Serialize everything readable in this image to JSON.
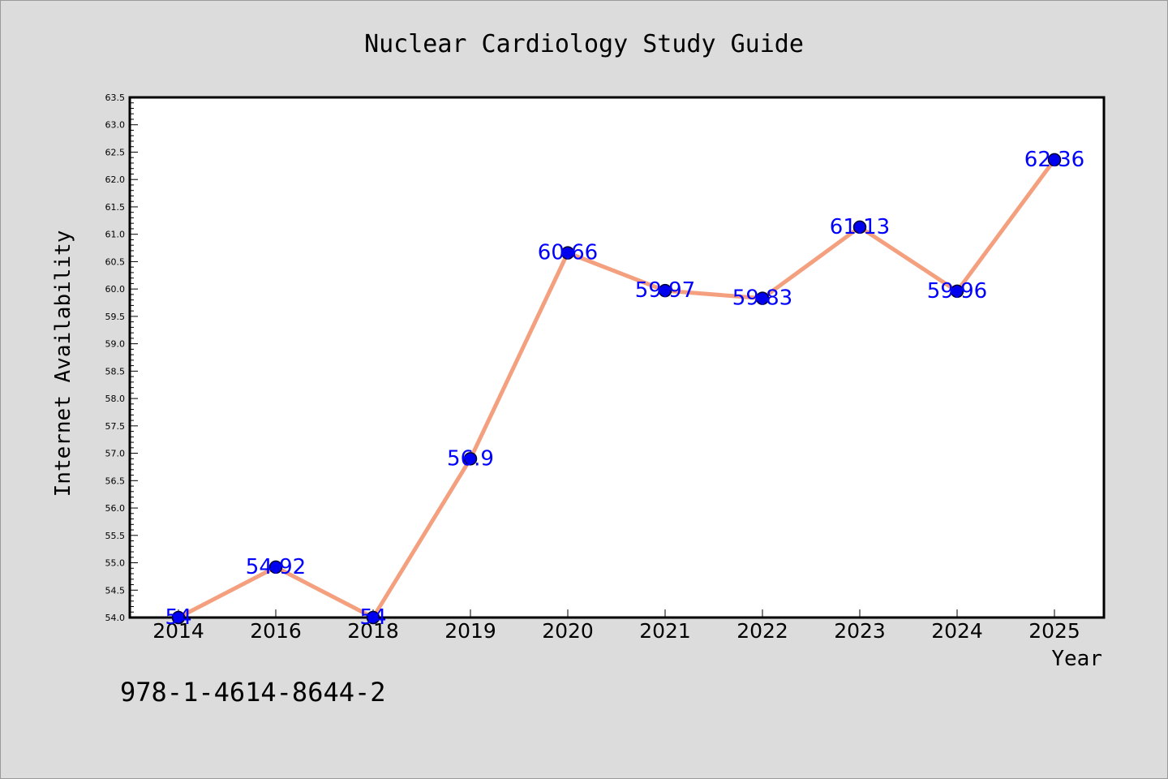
{
  "chart_data": {
    "type": "line",
    "title": "Nuclear Cardiology Study Guide",
    "xlabel": "Year",
    "ylabel": "Internet Availability",
    "categories": [
      "2014",
      "2016",
      "2018",
      "2019",
      "2020",
      "2021",
      "2022",
      "2023",
      "2024",
      "2025"
    ],
    "series": [
      {
        "values": [
          54,
          54.92,
          54,
          56.9,
          60.66,
          59.97,
          59.83,
          61.13,
          59.96,
          62.36
        ],
        "labels": [
          "54",
          "54.92",
          "54",
          "56.9",
          "60.66",
          "59.97",
          "59.83",
          "61.13",
          "59.96",
          "62.36"
        ]
      }
    ],
    "ylim": [
      54.0,
      63.5
    ],
    "yticks": [
      "54.0",
      "54.5",
      "55.0",
      "55.5",
      "56.0",
      "56.5",
      "57.0",
      "57.5",
      "58.0",
      "58.5",
      "59.0",
      "59.5",
      "60.0",
      "60.5",
      "61.0",
      "61.5",
      "62.0",
      "62.5",
      "63.0",
      "63.5"
    ],
    "grid": false,
    "legend": "none",
    "colors": {
      "line": "#f4a07e",
      "marker": "#0000ee",
      "marker_edge": "#000033",
      "label": "#0000ff",
      "background": "#dcdcdc",
      "plot_background": "#ffffff"
    }
  },
  "footnote": "978-1-4614-8644-2"
}
